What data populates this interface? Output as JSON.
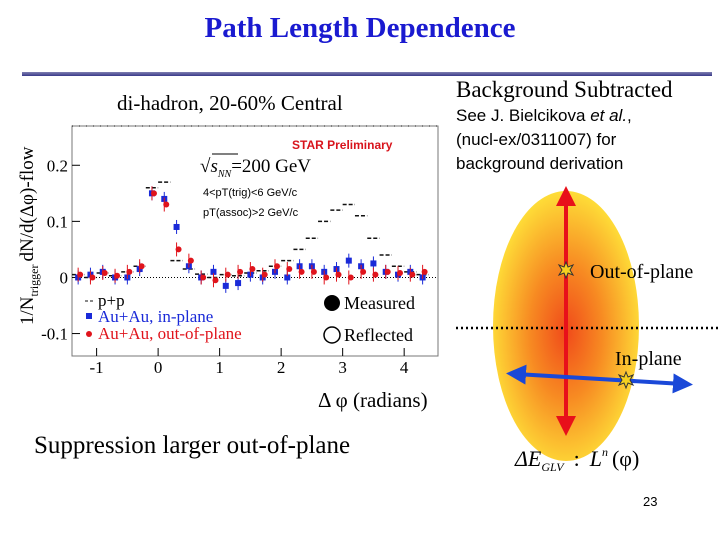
{
  "slide": {
    "title": "Path Length Dependence",
    "page_number": "23",
    "bottom_text": "Suppression larger out-of-plane",
    "background_heading": "Background Subtracted",
    "reference": {
      "prefix": "See J. Bielcikova ",
      "etal": "et al.",
      "line1_suffix": ",",
      "line2": "(nucl-ex/0311007) for",
      "line3": "background derivation"
    },
    "diagram": {
      "out_of_plane_label": "Out-of-plane",
      "in_plane_label": "In-plane",
      "measured_label": "Measured",
      "reflected_label": "Reflected",
      "formula": {
        "delta": "ΔE",
        "sub": "GLV",
        "colon": ":",
        "L": "L",
        "sup": "n",
        "phi": "(φ)"
      }
    },
    "colors": {
      "title": "#1a1ad0",
      "arrow_red": "#e8101a",
      "arrow_blue": "#1a48d8",
      "almond_core": "#f25a1a",
      "almond_edge": "#ffe233"
    }
  },
  "chart_data": {
    "type": "scatter",
    "panel_title": "di-hadron,  20-60% Central",
    "xlabel": "Δ φ (radians)",
    "ylabel": "1/N_trigger dN/d(Δφ)-flow",
    "ylabel_main": "dN/d(Δφ)-flow",
    "ylabel_prefix": "1/N",
    "ylabel_sub": "trigger",
    "xlim": [
      -1.4,
      4.55
    ],
    "ylim": [
      -0.14,
      0.27
    ],
    "x_ticks": [
      -1,
      0,
      1,
      2,
      3,
      4
    ],
    "x_tick_labels": [
      "-1",
      "0",
      "1",
      "2",
      "3",
      "4"
    ],
    "y_ticks": [
      -0.1,
      0,
      0.1,
      0.2
    ],
    "y_tick_labels": [
      "-0.1",
      "0",
      "0.1",
      "0.2"
    ],
    "annotations": {
      "star_preliminary": "STAR Preliminary",
      "energy": "√s_NN=200 GeV",
      "energy_prefix": "√",
      "energy_s": "s",
      "energy_sub": "NN",
      "energy_val": "=200 GeV",
      "trig_cut": "4<pT(trig)<6 GeV/c",
      "assoc_cut": "pT(assoc)>2 GeV/c"
    },
    "series": [
      {
        "name": "p+p",
        "style": "histogram-dashed",
        "color": "#111111",
        "x": [
          -1.3,
          -1.1,
          -0.9,
          -0.7,
          -0.5,
          -0.3,
          -0.1,
          0.1,
          0.3,
          0.5,
          0.7,
          0.9,
          1.1,
          1.3,
          1.5,
          1.7,
          1.9,
          2.1,
          2.3,
          2.5,
          2.7,
          2.9,
          3.1,
          3.3,
          3.5,
          3.7,
          3.9,
          4.1,
          4.3
        ],
        "y": [
          0.005,
          0.0,
          0.008,
          0.003,
          0.01,
          0.02,
          0.16,
          0.17,
          0.03,
          0.015,
          0.006,
          0.0,
          0.005,
          0.003,
          0.008,
          0.012,
          0.02,
          0.03,
          0.05,
          0.07,
          0.1,
          0.12,
          0.13,
          0.11,
          0.07,
          0.04,
          0.02,
          0.01,
          0.005
        ]
      },
      {
        "name": "Au+Au, in-plane",
        "style": "squares",
        "color": "#1a2ad8",
        "x": [
          -1.3,
          -1.1,
          -0.9,
          -0.7,
          -0.5,
          -0.3,
          -0.1,
          0.1,
          0.3,
          0.5,
          0.7,
          0.9,
          1.1,
          1.3,
          1.5,
          1.7,
          1.9,
          2.1,
          2.3,
          2.5,
          2.7,
          2.9,
          3.1,
          3.3,
          3.5,
          3.7,
          3.9,
          4.1,
          4.3
        ],
        "y": [
          0.0,
          0.005,
          0.01,
          0.0,
          0.0,
          0.015,
          0.15,
          0.14,
          0.09,
          0.02,
          0.0,
          0.01,
          -0.015,
          -0.01,
          0.005,
          0.0,
          0.01,
          0.0,
          0.02,
          0.02,
          0.01,
          0.015,
          0.03,
          0.02,
          0.025,
          0.01,
          0.005,
          0.01,
          0.0
        ]
      },
      {
        "name": "Au+Au, out-of-plane",
        "style": "circles",
        "color": "#e0141c",
        "x": [
          -1.3,
          -1.1,
          -0.9,
          -0.7,
          -0.5,
          -0.3,
          -0.1,
          0.1,
          0.3,
          0.5,
          0.7,
          0.9,
          1.1,
          1.3,
          1.5,
          1.7,
          1.9,
          2.1,
          2.3,
          2.5,
          2.7,
          2.9,
          3.1,
          3.3,
          3.5,
          3.7,
          3.9,
          4.1,
          4.3
        ],
        "y": [
          0.005,
          0.0,
          0.008,
          0.003,
          0.01,
          0.02,
          0.15,
          0.13,
          0.05,
          0.03,
          0.0,
          -0.005,
          0.005,
          0.01,
          0.015,
          0.005,
          0.02,
          0.015,
          0.01,
          0.01,
          0.0,
          0.005,
          0.0,
          0.01,
          0.005,
          0.01,
          0.008,
          0.005,
          0.01
        ]
      }
    ],
    "legend": [
      "p+p",
      "Au+Au, in-plane",
      "Au+Au, out-of-plane"
    ]
  }
}
